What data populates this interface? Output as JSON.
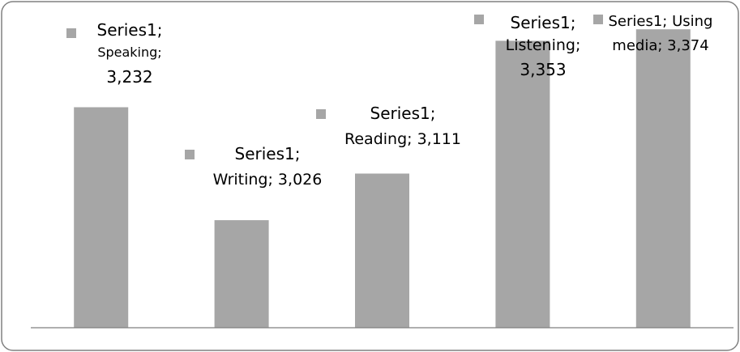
{
  "chart_data": {
    "type": "bar",
    "categories": [
      "Speaking",
      "Writing",
      "Reading",
      "Listening",
      "Using media"
    ],
    "series": [
      {
        "name": "Series1",
        "values": [
          3.232,
          3.026,
          3.111,
          3.353,
          3.374
        ]
      }
    ],
    "data_labels": [
      [
        "Series1;",
        "Speaking;",
        "3,232"
      ],
      [
        "Series1;",
        "Writing; 3,026"
      ],
      [
        "Series1;",
        "Reading; 3,111"
      ],
      [
        "Series1;",
        "Listening;",
        "3,353"
      ],
      [
        "Series1; Using",
        "media; 3,374"
      ]
    ],
    "title": "",
    "xlabel": "",
    "ylabel": "",
    "ylim": [
      2.83,
      3.42
    ],
    "grid": false,
    "legend": "none",
    "colors": {
      "bar": "#a6a6a6",
      "legend_key": "#a6a6a6",
      "axis": "#7f7f7f",
      "border": "#808080",
      "text": "#000000"
    }
  }
}
